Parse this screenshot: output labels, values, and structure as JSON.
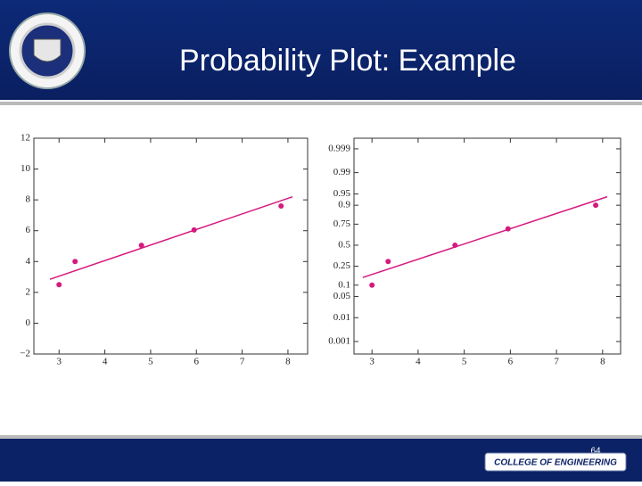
{
  "slide": {
    "title": "Probability Plot: Example",
    "page_number": "64",
    "footer_logo": "COLLEGE OF ENGINEERING"
  },
  "chart_data": [
    {
      "type": "scatter",
      "scale": "linear",
      "color": "#d6197f",
      "x": [
        3.0,
        3.35,
        4.8,
        5.95,
        7.85
      ],
      "y": [
        2.5,
        4.0,
        5.05,
        6.05,
        7.6
      ],
      "fit_line": {
        "x": [
          2.8,
          8.1
        ],
        "y": [
          2.85,
          8.2
        ]
      },
      "xlim": [
        2.45,
        8.43
      ],
      "ylim": [
        -2,
        12
      ],
      "xticks": [
        3,
        4,
        5,
        6,
        7,
        8
      ],
      "yticks": [
        {
          "value": -2,
          "label": "−2"
        },
        0,
        2,
        4,
        6,
        8,
        10,
        12
      ]
    },
    {
      "type": "scatter",
      "scale": "probability",
      "color": "#d6197f",
      "x": [
        3.0,
        3.35,
        4.8,
        5.95,
        7.85
      ],
      "y": [
        0.1,
        0.3,
        0.5,
        0.7,
        0.9
      ],
      "fit_line": {
        "x": [
          2.8,
          8.1
        ],
        "y": [
          0.15,
          0.94
        ]
      },
      "xlim": [
        2.61,
        8.39
      ],
      "ylim": [
        0.00024,
        0.9997
      ],
      "xticks": [
        3,
        4,
        5,
        6,
        7,
        8
      ],
      "yticks": [
        0.001,
        0.01,
        0.05,
        0.1,
        0.25,
        0.5,
        0.75,
        0.9,
        0.95,
        0.99,
        0.999
      ]
    }
  ]
}
